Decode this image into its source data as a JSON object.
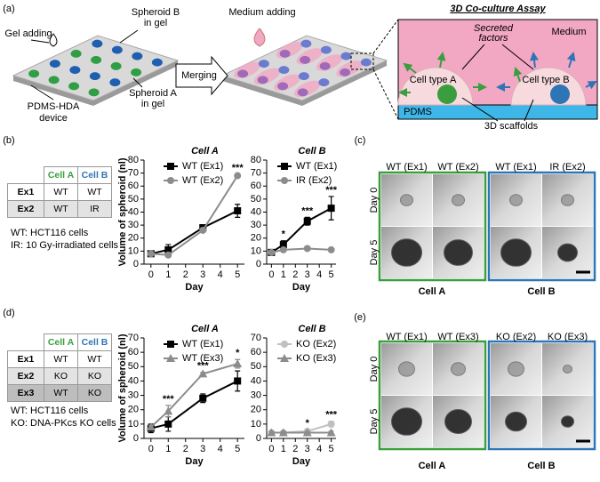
{
  "panel_labels": [
    "(a)",
    "(b)",
    "(c)",
    "(d)",
    "(e)"
  ],
  "diagram": {
    "gel_adding": "Gel adding",
    "spheroid_b": [
      "Spheroid B",
      "in gel"
    ],
    "device": [
      "PDMS-HDA",
      "device"
    ],
    "spheroid_a": [
      "Spheroid A",
      "in gel"
    ],
    "merging": "Merging",
    "medium_adding": "Medium adding",
    "assay_title": "3D Co-culture Assay",
    "secreted_factors": [
      "Secreted",
      "factors"
    ],
    "medium": "Medium",
    "cell_type_a": "Cell type A",
    "cell_type_b": "Cell type B",
    "pdms": "PDMS",
    "scaffolds": "3D scaffolds"
  },
  "tables": [
    {
      "columns": [
        "Cell A",
        "Cell B"
      ],
      "rows": [
        {
          "label": "Ex1",
          "cells": [
            "WT",
            "WT"
          ]
        },
        {
          "label": "Ex2",
          "cells": [
            "WT",
            "IR"
          ]
        }
      ],
      "notes": [
        "WT: HCT116 cells",
        "IR: 10 Gy-irradiated cells"
      ]
    },
    {
      "columns": [
        "Cell A",
        "Cell B"
      ],
      "rows": [
        {
          "label": "Ex1",
          "cells": [
            "WT",
            "WT"
          ]
        },
        {
          "label": "Ex2",
          "cells": [
            "KO",
            "KO"
          ]
        },
        {
          "label": "Ex3",
          "cells": [
            "WT",
            "KO"
          ]
        }
      ],
      "notes": [
        "WT: HCT116 cells",
        "KO: DNA-PKcs KO cells"
      ]
    }
  ],
  "images": [
    {
      "columns": [
        "WT (Ex1)",
        "WT (Ex2)",
        "WT (Ex1)",
        "IR (Ex2)"
      ],
      "rows": [
        "Day 0",
        "Day 5"
      ],
      "groups": [
        "Cell A",
        "Cell B"
      ]
    },
    {
      "columns": [
        "WT (Ex1)",
        "WT (Ex3)",
        "KO (Ex2)",
        "KO (Ex3)"
      ],
      "rows": [
        "Day 0",
        "Day 5"
      ],
      "groups": [
        "Cell A",
        "Cell B"
      ]
    }
  ],
  "chart_data": [
    {
      "type": "line",
      "title": "Cell A",
      "title_color": "#3a9e3f",
      "x_label": "Day",
      "y_label": "Volume of spheroid (nl)",
      "x": [
        0,
        1,
        3,
        5
      ],
      "xlim": [
        -0.4,
        5.4
      ],
      "xticks": [
        0,
        1,
        2,
        3,
        4,
        5
      ],
      "ylim": [
        0,
        80
      ],
      "yticks": [
        0,
        10,
        20,
        30,
        40,
        50,
        60,
        70,
        80
      ],
      "series": [
        {
          "name": "WT (Ex1)",
          "color": "#000000",
          "marker": "square",
          "values": [
            8,
            11,
            28,
            41
          ],
          "errors": [
            2,
            4,
            2,
            5
          ]
        },
        {
          "name": "WT (Ex2)",
          "color": "#8c8c8c",
          "marker": "circle",
          "values": [
            8,
            7,
            26,
            68
          ],
          "errors": [
            1,
            1,
            1,
            1
          ]
        }
      ],
      "annotations": [
        {
          "x": 5,
          "text": "***"
        }
      ]
    },
    {
      "type": "line",
      "title": "Cell B",
      "title_color": "#2e75b6",
      "x_label": "Day",
      "x": [
        0,
        1,
        3,
        5
      ],
      "xlim": [
        -0.4,
        5.4
      ],
      "xticks": [
        0,
        1,
        2,
        3,
        4,
        5
      ],
      "ylim": [
        0,
        80
      ],
      "yticks": [
        0,
        10,
        20,
        30,
        40,
        50,
        60,
        70,
        80
      ],
      "series": [
        {
          "name": "WT (Ex1)",
          "color": "#000000",
          "marker": "square",
          "values": [
            9,
            15,
            33,
            43
          ],
          "errors": [
            2,
            3,
            3,
            9
          ]
        },
        {
          "name": "IR (Ex2)",
          "color": "#8c8c8c",
          "marker": "circle",
          "values": [
            9,
            11,
            12,
            11
          ],
          "errors": [
            1,
            1,
            1,
            1
          ]
        }
      ],
      "annotations": [
        {
          "x": 1,
          "text": "*"
        },
        {
          "x": 3,
          "text": "***"
        },
        {
          "x": 5,
          "text": "***"
        }
      ]
    },
    {
      "type": "line",
      "title": "Cell A",
      "title_color": "#3a9e3f",
      "x_label": "Day",
      "y_label": "Volume of spheroid (nl)",
      "x": [
        0,
        1,
        3,
        5
      ],
      "xlim": [
        -0.4,
        5.4
      ],
      "xticks": [
        0,
        1,
        2,
        3,
        4,
        5
      ],
      "ylim": [
        0,
        70
      ],
      "yticks": [
        0,
        10,
        20,
        30,
        40,
        50,
        60,
        70
      ],
      "series": [
        {
          "name": "WT (Ex1)",
          "color": "#000000",
          "marker": "square",
          "values": [
            7,
            10,
            28,
            40
          ],
          "errors": [
            3,
            5,
            3,
            7
          ]
        },
        {
          "name": "WT (Ex3)",
          "color": "#8c8c8c",
          "marker": "triangle",
          "values": [
            8,
            19,
            45,
            52
          ],
          "errors": [
            1,
            4,
            1,
            3
          ]
        }
      ],
      "annotations": [
        {
          "x": 1,
          "text": "***"
        },
        {
          "x": 3,
          "text": "***"
        },
        {
          "x": 5,
          "text": "*"
        }
      ]
    },
    {
      "type": "line",
      "title": "Cell B",
      "title_color": "#2e75b6",
      "x_label": "Day",
      "x": [
        0,
        1,
        3,
        5
      ],
      "xlim": [
        -0.4,
        5.4
      ],
      "xticks": [
        0,
        1,
        2,
        3,
        4,
        5
      ],
      "ylim": [
        0,
        70
      ],
      "yticks": [
        0,
        10,
        20,
        30,
        40,
        50,
        60,
        70
      ],
      "series": [
        {
          "name": "KO (Ex2)",
          "color": "#c0c0c0",
          "marker": "circle",
          "values": [
            4,
            4,
            5,
            10
          ],
          "errors": [
            1,
            1,
            1,
            2
          ]
        },
        {
          "name": "KO (Ex3)",
          "color": "#8c8c8c",
          "marker": "triangle",
          "values": [
            4,
            4,
            4,
            4
          ],
          "errors": [
            1,
            1,
            1,
            1
          ]
        }
      ],
      "annotations": [
        {
          "x": 3,
          "text": "*"
        },
        {
          "x": 5,
          "text": "***"
        }
      ]
    }
  ]
}
